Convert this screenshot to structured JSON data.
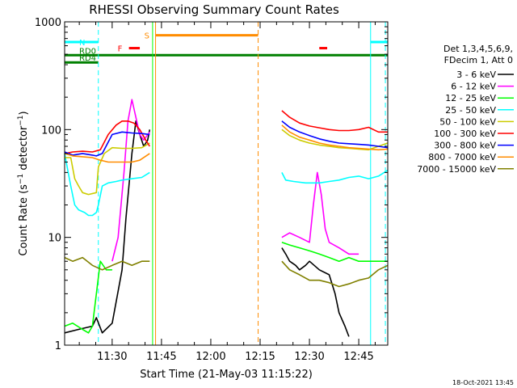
{
  "chart_data": {
    "type": "line",
    "title": "RHESSI Observing Summary Count Rates",
    "xlabel": "Start Time (21-May-03 11:15:22)",
    "ylabel_main": "Count Rate (s",
    "ylabel_sup": "−1",
    "ylabel_rest": " detector",
    "ylabel_end": ")",
    "y_scale": "log",
    "ylim": [
      1,
      1000
    ],
    "y_ticks": [
      1,
      10,
      100,
      1000
    ],
    "xlim": [
      11.259,
      12.897
    ],
    "x_ticks": [
      {
        "value": 11.5,
        "label": "11:30"
      },
      {
        "value": 11.75,
        "label": "11:45"
      },
      {
        "value": 12.0,
        "label": "12:00"
      },
      {
        "value": 12.25,
        "label": "12:15"
      },
      {
        "value": 12.5,
        "label": "12:30"
      },
      {
        "value": 12.75,
        "label": "12:45"
      }
    ],
    "legend": {
      "header_lines": [
        "Det 1,3,4,5,6,9,",
        "FDecim 1, Att 0"
      ],
      "placement": "right"
    },
    "series": [
      {
        "name": "3 - 6 keV",
        "color": "#000000",
        "segments": [
          {
            "x": [
              11.259,
              11.33,
              11.4,
              11.42,
              11.45,
              11.5,
              11.55,
              11.57,
              11.6,
              11.62,
              11.64,
              11.66,
              11.68,
              11.69
            ],
            "y": [
              1.3,
              1.4,
              1.5,
              1.8,
              1.3,
              1.6,
              5,
              15,
              60,
              120,
              90,
              70,
              80,
              100
            ]
          },
          {
            "x": [
              12.36,
              12.38,
              12.4,
              12.43,
              12.45,
              12.48,
              12.5,
              12.55,
              12.6,
              12.63,
              12.65,
              12.68,
              12.7
            ],
            "y": [
              8,
              7,
              6,
              5.5,
              5,
              5.5,
              6,
              5,
              4.5,
              3,
              2,
              1.5,
              1.2
            ]
          }
        ]
      },
      {
        "name": "6 - 12 keV",
        "color": "#ff00ff",
        "segments": [
          {
            "x": [
              11.5,
              11.53,
              11.56,
              11.58,
              11.6,
              11.62,
              11.64,
              11.66,
              11.69
            ],
            "y": [
              6,
              10,
              40,
              120,
              190,
              130,
              90,
              80,
              95
            ]
          },
          {
            "x": [
              12.36,
              12.4,
              12.45,
              12.5,
              12.52,
              12.54,
              12.56,
              12.58,
              12.6,
              12.65,
              12.7,
              12.75
            ],
            "y": [
              10,
              11,
              10,
              9,
              20,
              40,
              25,
              12,
              9,
              8,
              7,
              7
            ]
          }
        ]
      },
      {
        "name": "12 - 25 keV",
        "color": "#00ff00",
        "segments": [
          {
            "x": [
              11.259,
              11.3,
              11.35,
              11.38,
              11.4,
              11.42,
              11.44,
              11.47,
              11.5
            ],
            "y": [
              1.5,
              1.6,
              1.4,
              1.3,
              1.5,
              3,
              6,
              5,
              5
            ]
          },
          {
            "x": [
              12.36,
              12.4,
              12.45,
              12.5,
              12.55,
              12.6,
              12.65,
              12.7,
              12.75,
              12.8,
              12.85,
              12.897
            ],
            "y": [
              9,
              8.5,
              8,
              7.5,
              7,
              6.5,
              6,
              6.5,
              6,
              6,
              6,
              6
            ]
          }
        ]
      },
      {
        "name": "25 - 50 keV",
        "color": "#00ffff",
        "segments": [
          {
            "x": [
              11.259,
              11.29,
              11.31,
              11.33,
              11.36,
              11.38,
              11.4,
              11.42,
              11.43,
              11.45,
              11.48,
              11.52,
              11.55,
              11.6,
              11.65,
              11.69
            ],
            "y": [
              60,
              30,
              20,
              18,
              17,
              16,
              16,
              17,
              20,
              30,
              32,
              33,
              34,
              35,
              36,
              40
            ]
          },
          {
            "x": [
              12.36,
              12.38,
              12.42,
              12.48,
              12.55,
              12.6,
              12.65,
              12.7,
              12.75,
              12.8,
              12.85,
              12.897
            ],
            "y": [
              40,
              34,
              33,
              32,
              32,
              33,
              34,
              36,
              37,
              35,
              37,
              42
            ]
          }
        ]
      },
      {
        "name": "50 - 100 keV",
        "color": "#cccc00",
        "segments": [
          {
            "x": [
              11.259,
              11.29,
              11.31,
              11.33,
              11.35,
              11.38,
              11.42,
              11.43,
              11.46,
              11.5,
              11.55,
              11.6,
              11.65,
              11.69
            ],
            "y": [
              55,
              55,
              35,
              30,
              26,
              25,
              26,
              45,
              60,
              68,
              67,
              67,
              68,
              75
            ]
          },
          {
            "x": [
              12.36,
              12.4,
              12.45,
              12.5,
              12.55,
              12.6,
              12.65,
              12.7,
              12.75,
              12.8,
              12.85,
              12.897
            ],
            "y": [
              100,
              88,
              80,
              75,
              72,
              70,
              68,
              67,
              66,
              65,
              70,
              75
            ]
          }
        ]
      },
      {
        "name": "100 - 300 keV",
        "color": "#ff0000",
        "segments": [
          {
            "x": [
              11.259,
              11.3,
              11.35,
              11.4,
              11.44,
              11.48,
              11.52,
              11.55,
              11.58,
              11.61,
              11.64,
              11.67,
              11.69
            ],
            "y": [
              60,
              62,
              63,
              62,
              65,
              90,
              110,
              120,
              120,
              115,
              100,
              80,
              70
            ]
          },
          {
            "x": [
              12.36,
              12.4,
              12.45,
              12.5,
              12.55,
              12.6,
              12.65,
              12.7,
              12.75,
              12.8,
              12.85,
              12.897
            ],
            "y": [
              150,
              130,
              115,
              108,
              104,
              100,
              98,
              98,
              100,
              105,
              95,
              95
            ]
          }
        ]
      },
      {
        "name": "300 - 800 keV",
        "color": "#0000ff",
        "segments": [
          {
            "x": [
              11.259,
              11.3,
              11.35,
              11.4,
              11.42,
              11.45,
              11.5,
              11.55,
              11.6,
              11.65,
              11.69
            ],
            "y": [
              62,
              58,
              60,
              58,
              57,
              60,
              90,
              95,
              93,
              92,
              90
            ]
          },
          {
            "x": [
              12.36,
              12.4,
              12.45,
              12.5,
              12.55,
              12.6,
              12.65,
              12.7,
              12.75,
              12.8,
              12.85,
              12.897
            ],
            "y": [
              120,
              105,
              95,
              88,
              82,
              78,
              75,
              74,
              73,
              72,
              70,
              68
            ]
          }
        ]
      },
      {
        "name": "800 - 7000 keV",
        "color": "#ff8c00",
        "segments": [
          {
            "x": [
              11.259,
              11.3,
              11.35,
              11.4,
              11.44,
              11.48,
              11.52,
              11.56,
              11.6,
              11.64,
              11.69
            ],
            "y": [
              60,
              57,
              56,
              55,
              52,
              50,
              50,
              50,
              50,
              52,
              60
            ]
          },
          {
            "x": [
              12.36,
              12.4,
              12.45,
              12.5,
              12.55,
              12.6,
              12.65,
              12.7,
              12.75,
              12.8,
              12.85,
              12.897
            ],
            "y": [
              110,
              95,
              85,
              80,
              75,
              72,
              70,
              68,
              67,
              66,
              65,
              66
            ]
          }
        ]
      },
      {
        "name": "7000 - 15000 keV",
        "color": "#808000",
        "segments": [
          {
            "x": [
              11.259,
              11.3,
              11.35,
              11.4,
              11.45,
              11.5,
              11.55,
              11.6,
              11.65,
              11.69
            ],
            "y": [
              6.5,
              6,
              6.5,
              5.5,
              5,
              5.5,
              6,
              5.5,
              6,
              6
            ]
          },
          {
            "x": [
              12.36,
              12.4,
              12.45,
              12.5,
              12.55,
              12.6,
              12.65,
              12.7,
              12.75,
              12.8,
              12.85,
              12.897
            ],
            "y": [
              6,
              5,
              4.5,
              4,
              4,
              3.8,
              3.5,
              3.7,
              4,
              4.2,
              5,
              5.5
            ]
          }
        ]
      }
    ],
    "flags": [
      {
        "label": "N",
        "color": "#00ffff",
        "y": 650,
        "segments": [
          [
            11.259,
            11.43
          ],
          [
            12.81,
            12.897
          ]
        ]
      },
      {
        "label": "F",
        "color": "#ff0000",
        "y": 570,
        "segments": [
          [
            11.585,
            11.64
          ],
          [
            12.55,
            12.59
          ]
        ]
      },
      {
        "label": "S",
        "color": "#ff8c00",
        "y": 750,
        "segments": [
          [
            11.72,
            12.24
          ]
        ]
      },
      {
        "label": "RD0",
        "color": "#008000",
        "y": 490,
        "segments": [
          [
            11.259,
            12.897
          ]
        ]
      },
      {
        "label": "RD4",
        "color": "#008000",
        "y": 420,
        "segments": [
          [
            11.259,
            11.43
          ]
        ]
      }
    ],
    "vlines": [
      {
        "x": 11.43,
        "color": "#00ffff",
        "style": "dash"
      },
      {
        "x": 12.81,
        "color": "#00ffff",
        "style": "solid"
      },
      {
        "x": 12.885,
        "color": "#00ffff",
        "style": "dash"
      },
      {
        "x": 11.72,
        "color": "#ff8c00",
        "style": "solid"
      },
      {
        "x": 12.24,
        "color": "#ff8c00",
        "style": "dash"
      },
      {
        "x": 11.705,
        "color": "#00ff00",
        "style": "solid"
      }
    ],
    "timestamp": "18-Oct-2021 13:45"
  }
}
